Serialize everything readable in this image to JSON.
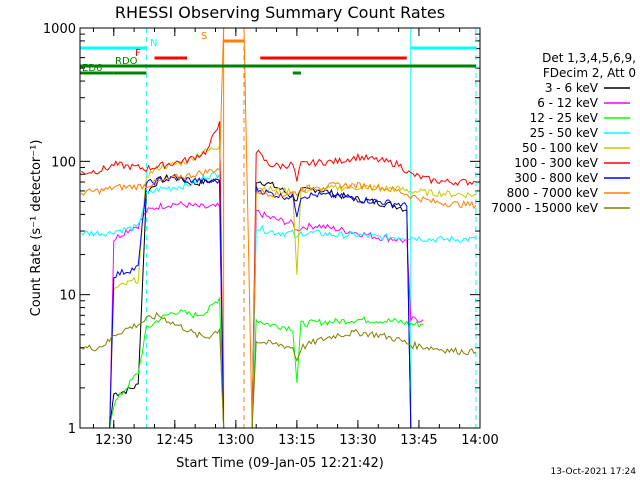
{
  "chart_data": {
    "type": "line",
    "title": "RHESSI Observing Summary Count Rates",
    "xlabel": "Start Time (09-Jan-05 12:21:42)",
    "ylabel": "Count Rate (s⁻¹ detector⁻¹)",
    "yscale": "log",
    "ylim": [
      1,
      1000
    ],
    "xlim": [
      "12:21:42",
      "14:00:00"
    ],
    "x_ticks": [
      "12:30",
      "12:45",
      "13:00",
      "13:15",
      "13:30",
      "13:45",
      "14:00"
    ],
    "y_ticks": [
      "1",
      "10",
      "100",
      "1000"
    ],
    "legend_header": [
      "Det 1,3,4,5,6,9,",
      "FDecim 2, Att 0"
    ],
    "legend_position": "right",
    "footer_date": "13-Oct-2021 17:24",
    "flags": [
      {
        "label": "N",
        "color": "#00ffff",
        "segments": [
          [
            "12:21:42",
            "12:38:00"
          ],
          [
            "13:43:00",
            "13:59:00"
          ]
        ]
      },
      {
        "label": "F",
        "color": "#ff0000",
        "segments": [
          [
            "12:40:00",
            "12:48:00"
          ],
          [
            "13:06:00",
            "13:42:00"
          ]
        ]
      },
      {
        "label": "S",
        "color": "#ff8000",
        "segments": [
          [
            "12:57:00",
            "13:02:00"
          ]
        ]
      },
      {
        "label": "RDO",
        "color": "#008000",
        "segments": [
          [
            "12:21:42",
            "13:59:00"
          ]
        ]
      },
      {
        "label": "ED6",
        "color": "#008000",
        "segments": [
          [
            "12:21:42",
            "12:30:00"
          ],
          [
            "12:30:00",
            "12:38:00"
          ],
          [
            "13:14:00",
            "13:16:00"
          ]
        ]
      }
    ],
    "markers": [
      {
        "time": "12:21:42",
        "color": "#00ffff",
        "style": "solid"
      },
      {
        "time": "12:38:00",
        "color": "#00ffff",
        "style": "dashed"
      },
      {
        "time": "12:57:00",
        "color": "#ff8000",
        "style": "solid"
      },
      {
        "time": "13:02:00",
        "color": "#ff8000",
        "style": "dashed"
      },
      {
        "time": "13:43:00",
        "color": "#00ffff",
        "style": "solid"
      },
      {
        "time": "13:59:00",
        "color": "#00ffff",
        "style": "dashed"
      }
    ],
    "series": [
      {
        "name": "3 - 6 keV",
        "color": "#000000",
        "points": [
          [
            "12:22",
            1
          ],
          [
            "12:29",
            1
          ],
          [
            "12:30",
            1.8
          ],
          [
            "12:33",
            1.9
          ],
          [
            "12:36",
            2.1
          ],
          [
            "12:38",
            58
          ],
          [
            "12:41",
            72
          ],
          [
            "12:45",
            78
          ],
          [
            "12:48",
            70
          ],
          [
            "12:50",
            68
          ],
          [
            "12:53",
            71
          ],
          [
            "12:56",
            72
          ],
          [
            "12:57",
            1
          ],
          [
            "13:04",
            1
          ],
          [
            "13:05",
            72
          ],
          [
            "13:08",
            68
          ],
          [
            "13:11",
            62
          ],
          [
            "13:14",
            54
          ],
          [
            "13:15",
            52
          ],
          [
            "13:16",
            60
          ],
          [
            "13:20",
            62
          ],
          [
            "13:25",
            56
          ],
          [
            "13:30",
            52
          ],
          [
            "13:35",
            49
          ],
          [
            "13:40",
            46
          ],
          [
            "13:42",
            43
          ],
          [
            "13:43",
            1
          ],
          [
            "13:59",
            1
          ]
        ]
      },
      {
        "name": "6 - 12 keV",
        "color": "#ff00ff",
        "points": [
          [
            "12:22",
            1
          ],
          [
            "12:29",
            1
          ],
          [
            "12:30",
            26
          ],
          [
            "12:33",
            30
          ],
          [
            "12:36",
            33
          ],
          [
            "12:38",
            42
          ],
          [
            "12:41",
            46
          ],
          [
            "12:45",
            48
          ],
          [
            "12:48",
            47
          ],
          [
            "12:50",
            46
          ],
          [
            "12:53",
            45
          ],
          [
            "12:56",
            46
          ],
          [
            "12:57",
            1
          ],
          [
            "13:04",
            1
          ],
          [
            "13:05",
            42
          ],
          [
            "13:08",
            38
          ],
          [
            "13:11",
            36
          ],
          [
            "13:14",
            34
          ],
          [
            "13:15",
            30
          ],
          [
            "13:16",
            32
          ],
          [
            "13:20",
            33
          ],
          [
            "13:25",
            31
          ],
          [
            "13:30",
            29
          ],
          [
            "13:35",
            27
          ],
          [
            "13:40",
            26
          ],
          [
            "13:42",
            25
          ],
          [
            "13:43",
            6.5
          ],
          [
            "13:46",
            6.5
          ]
        ]
      },
      {
        "name": "12 - 25 keV",
        "color": "#00ff00",
        "points": [
          [
            "12:22",
            1
          ],
          [
            "12:29",
            1
          ],
          [
            "12:30",
            1.5
          ],
          [
            "12:33",
            2.0
          ],
          [
            "12:36",
            2.6
          ],
          [
            "12:38",
            5.5
          ],
          [
            "12:41",
            6.5
          ],
          [
            "12:45",
            7.5
          ],
          [
            "12:48",
            7.2
          ],
          [
            "12:50",
            7.0
          ],
          [
            "12:53",
            7.5
          ],
          [
            "12:56",
            9.5
          ],
          [
            "12:57",
            1
          ],
          [
            "13:04",
            1
          ],
          [
            "13:05",
            6.5
          ],
          [
            "13:08",
            6.0
          ],
          [
            "13:11",
            5.8
          ],
          [
            "13:14",
            5.6
          ],
          [
            "13:15",
            2.2
          ],
          [
            "13:16",
            6.0
          ],
          [
            "13:20",
            6.2
          ],
          [
            "13:25",
            6.3
          ],
          [
            "13:30",
            6.5
          ],
          [
            "13:35",
            6.4
          ],
          [
            "13:40",
            6.3
          ],
          [
            "13:42",
            6.1
          ],
          [
            "13:43",
            6.0
          ],
          [
            "13:46",
            6.0
          ]
        ]
      },
      {
        "name": "25 - 50 keV",
        "color": "#00ffff",
        "points": [
          [
            "12:22",
            29
          ],
          [
            "12:26",
            29
          ],
          [
            "12:29",
            29
          ],
          [
            "12:30",
            30
          ],
          [
            "12:33",
            31
          ],
          [
            "12:36",
            32
          ],
          [
            "12:38",
            56
          ],
          [
            "12:41",
            62
          ],
          [
            "12:45",
            64
          ],
          [
            "12:48",
            66
          ],
          [
            "12:50",
            70
          ],
          [
            "12:53",
            78
          ],
          [
            "12:56",
            80
          ],
          [
            "12:57",
            1
          ],
          [
            "13:04",
            1
          ],
          [
            "13:05",
            32
          ],
          [
            "13:08",
            30
          ],
          [
            "13:11",
            29
          ],
          [
            "13:14",
            29
          ],
          [
            "13:15",
            26
          ],
          [
            "13:16",
            29
          ],
          [
            "13:20",
            29
          ],
          [
            "13:25",
            28
          ],
          [
            "13:30",
            28
          ],
          [
            "13:35",
            27
          ],
          [
            "13:40",
            27
          ],
          [
            "13:43",
            27
          ],
          [
            "13:48",
            26
          ],
          [
            "13:53",
            26
          ],
          [
            "13:59",
            26
          ]
        ]
      },
      {
        "name": "50 - 100 keV",
        "color": "#c8c800",
        "points": [
          [
            "12:22",
            1
          ],
          [
            "12:29",
            1
          ],
          [
            "12:30",
            11
          ],
          [
            "12:33",
            12
          ],
          [
            "12:36",
            13
          ],
          [
            "12:38",
            78
          ],
          [
            "12:41",
            90
          ],
          [
            "12:45",
            95
          ],
          [
            "12:48",
            100
          ],
          [
            "12:50",
            110
          ],
          [
            "12:53",
            120
          ],
          [
            "12:56",
            130
          ],
          [
            "12:57",
            1
          ],
          [
            "13:04",
            1
          ],
          [
            "13:05",
            65
          ],
          [
            "13:08",
            62
          ],
          [
            "13:11",
            60
          ],
          [
            "13:14",
            60
          ],
          [
            "13:15",
            14
          ],
          [
            "13:16",
            60
          ],
          [
            "13:20",
            62
          ],
          [
            "13:25",
            63
          ],
          [
            "13:30",
            64
          ],
          [
            "13:35",
            63
          ],
          [
            "13:40",
            62
          ],
          [
            "13:43",
            60
          ],
          [
            "13:48",
            58
          ],
          [
            "13:53",
            57
          ],
          [
            "13:59",
            56
          ]
        ]
      },
      {
        "name": "100 - 300 keV",
        "color": "#ff0000",
        "points": [
          [
            "12:22",
            82
          ],
          [
            "12:26",
            85
          ],
          [
            "12:29",
            90
          ],
          [
            "12:30",
            95
          ],
          [
            "12:33",
            92
          ],
          [
            "12:36",
            90
          ],
          [
            "12:38",
            88
          ],
          [
            "12:41",
            92
          ],
          [
            "12:45",
            98
          ],
          [
            "12:48",
            102
          ],
          [
            "12:50",
            108
          ],
          [
            "12:53",
            120
          ],
          [
            "12:56",
            200
          ],
          [
            "12:57",
            1
          ],
          [
            "13:04",
            1
          ],
          [
            "13:05",
            120
          ],
          [
            "13:08",
            95
          ],
          [
            "13:11",
            92
          ],
          [
            "13:14",
            95
          ],
          [
            "13:15",
            70
          ],
          [
            "13:16",
            95
          ],
          [
            "13:20",
            98
          ],
          [
            "13:25",
            100
          ],
          [
            "13:30",
            108
          ],
          [
            "13:35",
            102
          ],
          [
            "13:40",
            95
          ],
          [
            "13:43",
            80
          ],
          [
            "13:48",
            72
          ],
          [
            "13:53",
            70
          ],
          [
            "13:59",
            70
          ]
        ]
      },
      {
        "name": "300 - 800 keV",
        "color": "#0000ff",
        "points": [
          [
            "12:22",
            1
          ],
          [
            "12:29",
            1
          ],
          [
            "12:30",
            14
          ],
          [
            "12:33",
            15
          ],
          [
            "12:36",
            16
          ],
          [
            "12:38",
            68
          ],
          [
            "12:41",
            72
          ],
          [
            "12:45",
            74
          ],
          [
            "12:48",
            73
          ],
          [
            "12:50",
            72
          ],
          [
            "12:53",
            70
          ],
          [
            "12:56",
            72
          ],
          [
            "12:57",
            1
          ],
          [
            "13:04",
            1
          ],
          [
            "13:05",
            62
          ],
          [
            "13:08",
            58
          ],
          [
            "13:11",
            55
          ],
          [
            "13:14",
            54
          ],
          [
            "13:15",
            40
          ],
          [
            "13:16",
            55
          ],
          [
            "13:20",
            56
          ],
          [
            "13:25",
            55
          ],
          [
            "13:30",
            52
          ],
          [
            "13:35",
            50
          ],
          [
            "13:40",
            48
          ],
          [
            "13:42",
            46
          ],
          [
            "13:43",
            1
          ]
        ]
      },
      {
        "name": "800 - 7000 keV",
        "color": "#ff8000",
        "points": [
          [
            "12:22",
            58
          ],
          [
            "12:26",
            60
          ],
          [
            "12:29",
            62
          ],
          [
            "12:30",
            64
          ],
          [
            "12:33",
            64
          ],
          [
            "12:36",
            65
          ],
          [
            "12:38",
            66
          ],
          [
            "12:41",
            70
          ],
          [
            "12:45",
            75
          ],
          [
            "12:48",
            78
          ],
          [
            "12:50",
            80
          ],
          [
            "12:53",
            84
          ],
          [
            "12:56",
            88
          ],
          [
            "12:57",
            1000
          ],
          [
            "13:02",
            1000
          ],
          [
            "13:04",
            1
          ],
          [
            "13:05",
            60
          ],
          [
            "13:08",
            58
          ],
          [
            "13:11",
            56
          ],
          [
            "13:14",
            58
          ],
          [
            "13:15",
            58
          ],
          [
            "13:16",
            62
          ],
          [
            "13:20",
            64
          ],
          [
            "13:25",
            66
          ],
          [
            "13:30",
            66
          ],
          [
            "13:35",
            64
          ],
          [
            "13:40",
            60
          ],
          [
            "13:43",
            55
          ],
          [
            "13:48",
            50
          ],
          [
            "13:53",
            48
          ],
          [
            "13:59",
            47
          ]
        ]
      },
      {
        "name": "7000 - 15000 keV",
        "color": "#808000",
        "points": [
          [
            "12:22",
            4.0
          ],
          [
            "12:26",
            4.0
          ],
          [
            "12:29",
            4.5
          ],
          [
            "12:30",
            5.0
          ],
          [
            "12:33",
            5.5
          ],
          [
            "12:36",
            6.0
          ],
          [
            "12:38",
            6.5
          ],
          [
            "12:41",
            7.0
          ],
          [
            "12:45",
            6.0
          ],
          [
            "12:48",
            5.5
          ],
          [
            "12:50",
            5.0
          ],
          [
            "12:53",
            4.8
          ],
          [
            "12:56",
            5.5
          ],
          [
            "12:57",
            1
          ],
          [
            "13:04",
            1
          ],
          [
            "13:05",
            4.5
          ],
          [
            "13:08",
            4.3
          ],
          [
            "13:11",
            4.2
          ],
          [
            "13:14",
            4.0
          ],
          [
            "13:15",
            3.2
          ],
          [
            "13:16",
            4.0
          ],
          [
            "13:20",
            4.5
          ],
          [
            "13:25",
            5.0
          ],
          [
            "13:30",
            5.2
          ],
          [
            "13:35",
            5.0
          ],
          [
            "13:40",
            4.6
          ],
          [
            "13:43",
            4.2
          ],
          [
            "13:48",
            4.0
          ],
          [
            "13:53",
            3.8
          ],
          [
            "13:59",
            3.7
          ]
        ]
      }
    ]
  }
}
